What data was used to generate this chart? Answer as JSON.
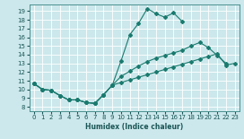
{
  "xlabel": "Humidex (Indice chaleur)",
  "bg_color": "#cce8ec",
  "grid_color": "#ffffff",
  "line_color": "#1a7a6e",
  "xlim": [
    -0.5,
    23.5
  ],
  "ylim": [
    7.5,
    19.8
  ],
  "xticks": [
    0,
    1,
    2,
    3,
    4,
    5,
    6,
    7,
    8,
    9,
    10,
    11,
    12,
    13,
    14,
    15,
    16,
    17,
    18,
    19,
    20,
    21,
    22,
    23
  ],
  "yticks": [
    8,
    9,
    10,
    11,
    12,
    13,
    14,
    15,
    16,
    17,
    18,
    19
  ],
  "curve_x": [
    0,
    1,
    2,
    3,
    4,
    5,
    6,
    7,
    8,
    9,
    10,
    11,
    12,
    13,
    14,
    15,
    16,
    17
  ],
  "curve_y": [
    10.7,
    10.0,
    9.9,
    9.3,
    8.8,
    8.8,
    8.5,
    8.4,
    9.4,
    10.5,
    13.3,
    16.3,
    17.6,
    19.3,
    18.7,
    18.3,
    18.8,
    17.8
  ],
  "upper_x": [
    0,
    1,
    2,
    3,
    4,
    5,
    6,
    7,
    8,
    9,
    10,
    11,
    12,
    13,
    14,
    15,
    16,
    17,
    18,
    19,
    20,
    21,
    22
  ],
  "upper_y": [
    10.7,
    10.0,
    9.9,
    9.3,
    8.8,
    8.8,
    8.5,
    8.4,
    9.4,
    10.5,
    11.5,
    12.1,
    12.7,
    13.2,
    13.6,
    13.9,
    14.2,
    14.5,
    15.0,
    15.4,
    14.8,
    13.9,
    13.0
  ],
  "lower_x": [
    0,
    1,
    2,
    3,
    4,
    5,
    6,
    7,
    8,
    9,
    10,
    11,
    12,
    13,
    14,
    15,
    16,
    17,
    18,
    19,
    20,
    21,
    22,
    23
  ],
  "lower_y": [
    10.7,
    10.0,
    9.9,
    9.3,
    8.8,
    8.8,
    8.5,
    8.4,
    9.4,
    10.5,
    10.8,
    11.1,
    11.4,
    11.7,
    12.0,
    12.3,
    12.6,
    12.9,
    13.2,
    13.5,
    13.8,
    14.1,
    12.8,
    13.0
  ]
}
